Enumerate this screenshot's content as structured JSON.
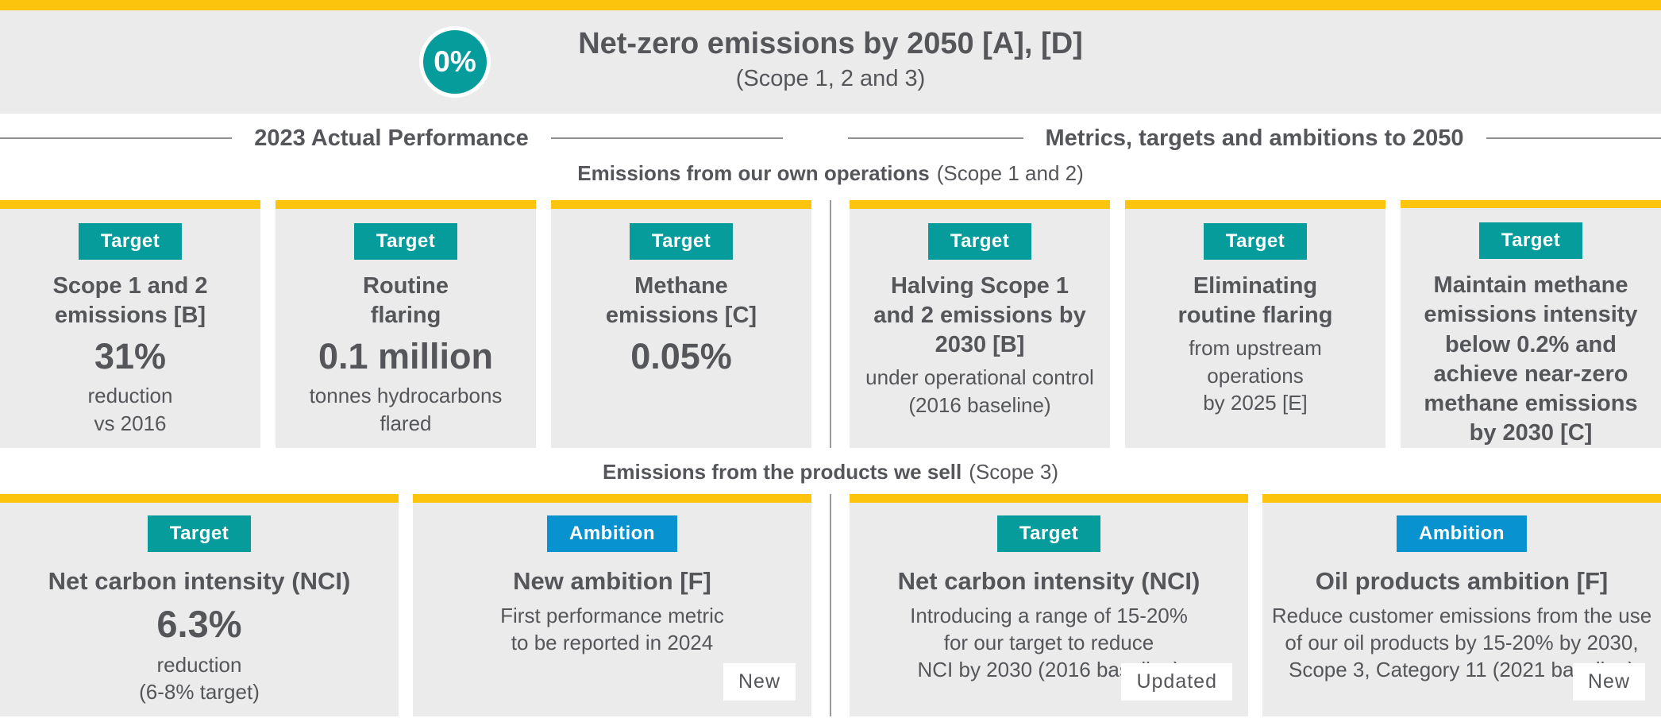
{
  "brand": {
    "yellow": "#FDC40D",
    "teal": "#079C9C",
    "blue": "#0892D0",
    "card_bg": "#EBEBEB",
    "text": "#54565A",
    "rule": "#8F8F8F"
  },
  "header": {
    "circle_label": "0%",
    "title": "Net-zero emissions by 2050 [A], [D]",
    "subtitle": "(Scope 1, 2 and 3)"
  },
  "column_headers": {
    "left": "2023 Actual Performance",
    "right": "Metrics, targets and ambitions to 2050"
  },
  "section1": {
    "label_bold": "Emissions from our own operations",
    "label_note": "(Scope 1 and 2)",
    "cards": [
      {
        "badge": "Target",
        "title": "Scope 1 and 2\nemissions [B]",
        "big": "31%",
        "detail": "reduction\nvs 2016"
      },
      {
        "badge": "Target",
        "title": "Routine\nflaring",
        "big": "0.1 million",
        "detail": "tonnes hydrocarbons\nflared"
      },
      {
        "badge": "Target",
        "title": "Methane\nemissions [C]",
        "big": "0.05%",
        "detail": ""
      },
      {
        "badge": "Target",
        "title": "Halving Scope 1\nand 2 emissions by\n2030 [B]",
        "big": "",
        "detail": "under operational control\n(2016 baseline)"
      },
      {
        "badge": "Target",
        "title": "Eliminating\nroutine flaring",
        "big": "",
        "detail": "from upstream\noperations\nby 2025 [E]"
      },
      {
        "badge": "Target",
        "title": "Maintain methane\nemissions intensity\nbelow 0.2% and\nachieve near-zero\nmethane emissions\nby 2030 [C]",
        "big": "",
        "detail": ""
      }
    ]
  },
  "section2": {
    "label_bold": "Emissions from the products we sell",
    "label_note": "(Scope 3)",
    "cards": [
      {
        "badge": "Target",
        "title": "Net carbon intensity (NCI)",
        "big": "6.3%",
        "detail": "reduction\n(6-8% target)",
        "tag": ""
      },
      {
        "badge": "Ambition",
        "title": "New ambition [F]",
        "big": "",
        "detail": "First performance metric\nto be reported in 2024",
        "tag": "New"
      },
      {
        "badge": "Target",
        "title": "Net carbon intensity (NCI)",
        "big": "",
        "detail": "Introducing a range of 15-20%\nfor our target to reduce\nNCI by 2030 (2016 baseline)",
        "tag": "Updated"
      },
      {
        "badge": "Ambition",
        "title": "Oil products ambition [F]",
        "big": "",
        "detail": "Reduce customer emissions from the use\nof our oil products by 15-20% by 2030,\nScope 3, Category 11 (2021 baseline)",
        "tag": "New"
      }
    ]
  }
}
